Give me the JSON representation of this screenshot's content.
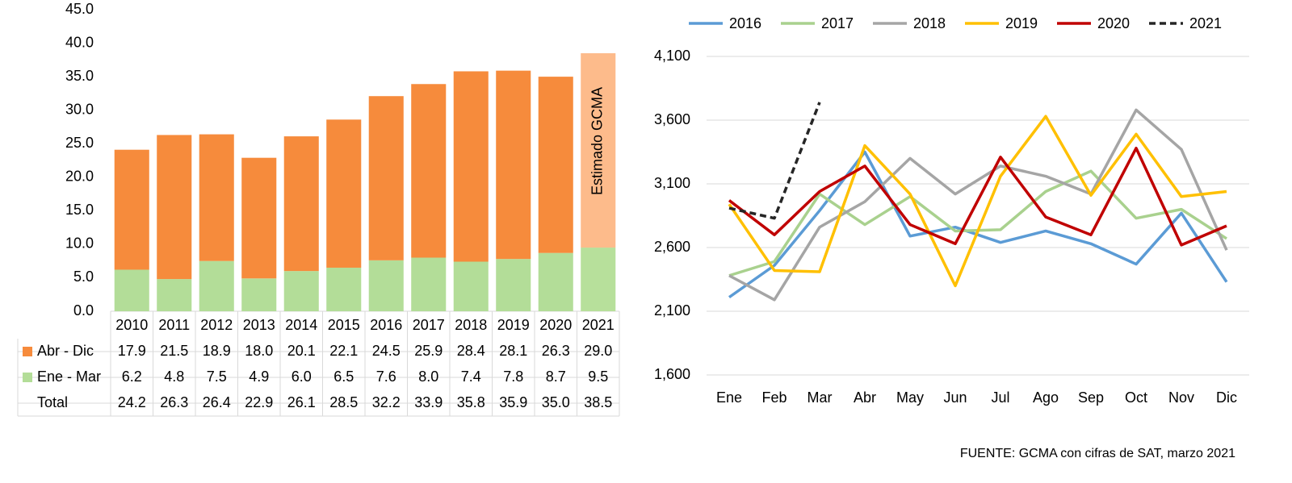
{
  "chart_data": [
    {
      "type": "bar",
      "stacked": true,
      "categories": [
        "2010",
        "2011",
        "2012",
        "2013",
        "2014",
        "2015",
        "2016",
        "2017",
        "2018",
        "2019",
        "2020",
        "2021"
      ],
      "series": [
        {
          "name": "Ene - Mar",
          "color": "#b3dd98",
          "estimated_color": "#b7e09b",
          "values": [
            6.2,
            4.8,
            7.5,
            4.9,
            6.0,
            6.5,
            7.6,
            8.0,
            7.4,
            7.8,
            8.7,
            9.5
          ],
          "value_labels": [
            "6.2",
            "4.8",
            "7.5",
            "4.9",
            "6.0",
            "6.5",
            "7.6",
            "8.0",
            "7.4",
            "7.8",
            "8.7",
            "9.5"
          ]
        },
        {
          "name": "Abr - Dic",
          "color": "#f68b3c",
          "estimated_color": "#fdbb8b",
          "values": [
            17.9,
            21.5,
            18.9,
            18.0,
            20.1,
            22.1,
            24.5,
            25.9,
            28.4,
            28.1,
            26.3,
            29.0
          ],
          "value_labels": [
            "17.9",
            "21.5",
            "18.9",
            "18.0",
            "20.1",
            "22.1",
            "24.5",
            "25.9",
            "28.4",
            "28.1",
            "26.3",
            "29.0"
          ]
        }
      ],
      "total": {
        "name": "Total",
        "values": [
          24.2,
          26.3,
          26.4,
          22.9,
          26.1,
          28.5,
          32.2,
          33.9,
          35.8,
          35.9,
          35.0,
          38.5
        ],
        "value_labels": [
          "24.2",
          "26.3",
          "26.4",
          "22.9",
          "26.1",
          "28.5",
          "32.2",
          "33.9",
          "35.8",
          "35.9",
          "35.0",
          "38.5"
        ]
      },
      "annotation": {
        "text": "Estimado GCMA",
        "category": "2021"
      },
      "ylim": [
        0,
        45
      ],
      "yticks": [
        {
          "value": 0,
          "label": "0.0"
        },
        {
          "value": 5,
          "label": "5.0"
        },
        {
          "value": 10,
          "label": "10.0"
        },
        {
          "value": 15,
          "label": "15.0"
        },
        {
          "value": 20,
          "label": "20.0"
        },
        {
          "value": 25,
          "label": "25.0"
        },
        {
          "value": 30,
          "label": "30.0"
        },
        {
          "value": 35,
          "label": "35.0"
        },
        {
          "value": 40,
          "label": "40.0"
        },
        {
          "value": 45,
          "label": "45.0"
        }
      ],
      "grid": false
    },
    {
      "type": "line",
      "categories": [
        "Ene",
        "Feb",
        "Mar",
        "Abr",
        "May",
        "Jun",
        "Jul",
        "Ago",
        "Sep",
        "Oct",
        "Nov",
        "Dic"
      ],
      "series": [
        {
          "name": "2016",
          "color": "#5b9bd5",
          "values": [
            2210,
            2460,
            2890,
            3350,
            2690,
            2760,
            2640,
            2730,
            2630,
            2470,
            2870,
            2330
          ]
        },
        {
          "name": "2017",
          "color": "#a9d18e",
          "values": [
            2380,
            2490,
            3020,
            2780,
            3000,
            2730,
            2740,
            3040,
            3200,
            2830,
            2900,
            2670
          ]
        },
        {
          "name": "2018",
          "color": "#a5a5a5",
          "values": [
            2380,
            2190,
            2760,
            2960,
            3300,
            3020,
            3240,
            3160,
            3020,
            3680,
            3370,
            2580
          ]
        },
        {
          "name": "2019",
          "color": "#ffc000",
          "values": [
            2940,
            2420,
            2410,
            3400,
            3020,
            2300,
            3160,
            3630,
            3010,
            3490,
            3000,
            3040
          ]
        },
        {
          "name": "2020",
          "color": "#c00000",
          "values": [
            2970,
            2700,
            3040,
            3240,
            2780,
            2630,
            3310,
            2840,
            2700,
            3380,
            2620,
            2770
          ]
        },
        {
          "name": "2021",
          "color": "#262626",
          "dashed": true,
          "values": [
            2910,
            2830,
            3740,
            null,
            null,
            null,
            null,
            null,
            null,
            null,
            null,
            null
          ]
        }
      ],
      "ylim": [
        1600,
        4100
      ],
      "yticks": [
        {
          "value": 1600,
          "label": "1,600"
        },
        {
          "value": 2100,
          "label": "2,100"
        },
        {
          "value": 2600,
          "label": "2,600"
        },
        {
          "value": 3100,
          "label": "3,100"
        },
        {
          "value": 3600,
          "label": "3,600"
        },
        {
          "value": 4100,
          "label": "4,100"
        }
      ],
      "grid": true,
      "legend": "top"
    }
  ],
  "source": "FUENTE: GCMA con cifras de SAT, marzo 2021"
}
